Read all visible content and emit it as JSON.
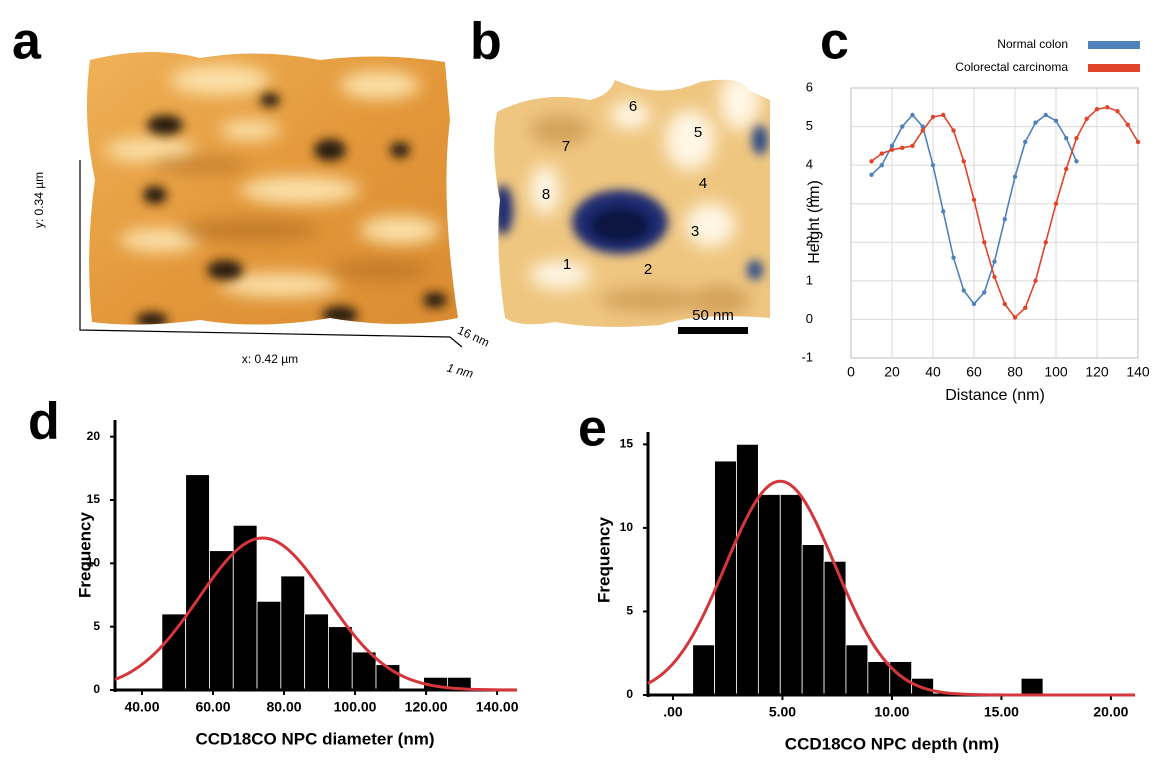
{
  "chart_data": [
    {
      "type": "line",
      "panel": "c",
      "xlabel": "Distance (nm)",
      "ylabel": "Height (nm)",
      "xlim": [
        0,
        140
      ],
      "xticks": [
        0,
        20,
        40,
        60,
        80,
        100,
        120,
        140
      ],
      "ylim": [
        -1,
        6
      ],
      "yticks": [
        -1,
        0,
        1,
        2,
        3,
        4,
        5,
        6
      ],
      "grid": true,
      "legend": "top-right",
      "series": [
        {
          "name": "Normal colon",
          "color": "#4f81bd",
          "x": [
            10,
            15,
            20,
            25,
            30,
            35,
            40,
            45,
            50,
            55,
            60,
            65,
            70,
            75,
            80,
            85,
            90,
            95,
            100,
            105,
            110
          ],
          "values": [
            3.75,
            4.0,
            4.5,
            5.0,
            5.3,
            5.0,
            4.0,
            2.8,
            1.6,
            0.75,
            0.4,
            0.7,
            1.5,
            2.6,
            3.7,
            4.6,
            5.1,
            5.3,
            5.15,
            4.7,
            4.1
          ]
        },
        {
          "name": "Colorectal carcinoma",
          "color": "#e0452c",
          "x": [
            10,
            15,
            20,
            25,
            30,
            35,
            40,
            45,
            50,
            55,
            60,
            65,
            70,
            75,
            80,
            85,
            90,
            95,
            100,
            105,
            110,
            115,
            120,
            125,
            130,
            135,
            140
          ],
          "values": [
            4.1,
            4.3,
            4.4,
            4.45,
            4.5,
            4.9,
            5.25,
            5.3,
            4.9,
            4.1,
            3.1,
            2.0,
            1.1,
            0.4,
            0.05,
            0.3,
            1.0,
            2.0,
            3.0,
            3.9,
            4.7,
            5.2,
            5.45,
            5.5,
            5.4,
            5.05,
            4.6
          ]
        }
      ]
    },
    {
      "type": "histogram",
      "panel": "d",
      "xlabel": "CCD18CO NPC diameter (nm)",
      "ylabel": "Frequency",
      "color": "#000000",
      "bins": [
        45.6,
        52.3,
        59.0,
        65.7,
        72.4,
        79.1,
        85.8,
        92.5,
        99.2,
        105.9,
        112.6,
        119.3,
        126.0,
        132.7
      ],
      "values": [
        6,
        17,
        11,
        13,
        7,
        9,
        6,
        5,
        3,
        2,
        0,
        1,
        1
      ],
      "fit": {
        "color": "#d4363c",
        "mean": 74,
        "sd": 18,
        "peak": 12
      },
      "xlim": [
        32.4,
        145.6
      ],
      "xticks": [
        {
          "value": 40,
          "label": "40.00"
        },
        {
          "value": 60,
          "label": "60.00"
        },
        {
          "value": 80,
          "label": "80.00"
        },
        {
          "value": 100,
          "label": "100.00"
        },
        {
          "value": 120,
          "label": "120.00"
        },
        {
          "value": 140,
          "label": "140.00"
        }
      ],
      "ylim": [
        0,
        21
      ],
      "yticks": [
        0,
        5,
        10,
        15,
        20
      ]
    },
    {
      "type": "histogram",
      "panel": "e",
      "xlabel": "CCD18CO NPC depth (nm)",
      "ylabel": "Frequency",
      "color": "#000000",
      "bins": [
        0.9,
        1.9,
        2.9,
        3.9,
        4.9,
        5.9,
        6.9,
        7.9,
        8.9,
        9.9,
        10.9,
        11.9,
        12.9,
        13.9,
        14.9,
        15.9,
        16.9
      ],
      "values": [
        3,
        14,
        15,
        12,
        12,
        9,
        8,
        3,
        2,
        2,
        1,
        0,
        0,
        0,
        0,
        1
      ],
      "fit": {
        "color": "#d4363c",
        "mean": 4.9,
        "sd": 2.5,
        "peak": 12.8
      },
      "xlim": [
        -1.14,
        21.1
      ],
      "xticks": [
        {
          "value": 0,
          "label": ".00"
        },
        {
          "value": 5,
          "label": "5.00"
        },
        {
          "value": 10,
          "label": "10.00"
        },
        {
          "value": 15,
          "label": "15.00"
        },
        {
          "value": 20,
          "label": "20.00"
        }
      ],
      "ylim": [
        0,
        15.5
      ],
      "yticks": [
        0,
        5,
        10,
        15
      ]
    }
  ],
  "images": [
    {
      "panel": "a",
      "y_label": "y: 0.34 µm",
      "x_label": "x: 0.42 µm",
      "z_top": "16 nm",
      "z_bottom": "1 nm"
    },
    {
      "panel": "b",
      "markers": [
        "1",
        "2",
        "3",
        "4",
        "5",
        "6",
        "7",
        "8"
      ],
      "scale_bar": "50 nm"
    }
  ]
}
